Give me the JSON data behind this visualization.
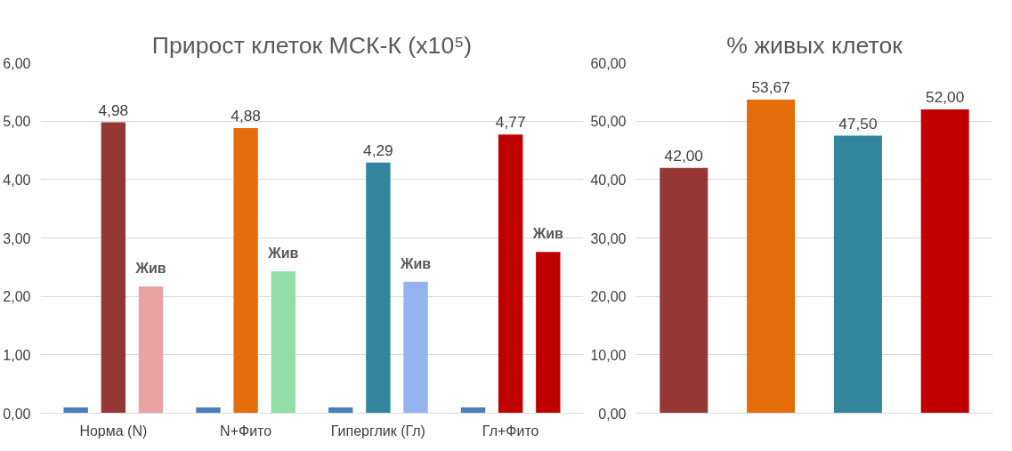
{
  "chart_data": [
    {
      "type": "bar",
      "title": "Прирост клеток МСК-К (x10⁵)",
      "categories": [
        "Норма (N)",
        "N+Фито",
        "Гиперглик (Гл)",
        "Гл+Фито"
      ],
      "grid": "y",
      "ylim": [
        0,
        6
      ],
      "yticks": [
        {
          "value": 0,
          "label": "0,00"
        },
        {
          "value": 1,
          "label": "1,00"
        },
        {
          "value": 2,
          "label": "2,00"
        },
        {
          "value": 3,
          "label": "3,00"
        },
        {
          "value": 4,
          "label": "4,00"
        },
        {
          "value": 5,
          "label": "5,00"
        },
        {
          "value": 6,
          "label": "6,00"
        }
      ],
      "series": [
        {
          "color": "#4a7ebb",
          "values": [
            0.1,
            0.1,
            0.1,
            0.1
          ]
        },
        {
          "colors": [
            "#953735",
            "#e46c0a",
            "#31859c",
            "#c00000"
          ],
          "values": [
            4.98,
            4.88,
            4.29,
            4.77
          ],
          "value_labels": [
            "4,98",
            "4,88",
            "4,29",
            "4,77"
          ]
        },
        {
          "name": "Жив",
          "colors": [
            "#e9a3a3",
            "#93dea6",
            "#95b3ee",
            "#c00000"
          ],
          "values": [
            2.17,
            2.43,
            2.25,
            2.76
          ]
        }
      ]
    },
    {
      "type": "bar",
      "title": "% живых клеток",
      "categories": [
        null,
        null,
        null,
        null
      ],
      "grid": "y",
      "ylim": [
        0,
        60
      ],
      "yticks": [
        {
          "value": 0,
          "label": "0,00"
        },
        {
          "value": 10,
          "label": "10,00"
        },
        {
          "value": 20,
          "label": "20,00"
        },
        {
          "value": 30,
          "label": "30,00"
        },
        {
          "value": 40,
          "label": "40,00"
        },
        {
          "value": 50,
          "label": "50,00"
        },
        {
          "value": 60,
          "label": "60,00"
        }
      ],
      "series": [
        {
          "colors": [
            "#953735",
            "#e46c0a",
            "#31859c",
            "#c00000"
          ],
          "values": [
            42.0,
            53.67,
            47.5,
            52.0
          ],
          "value_labels": [
            "42,00",
            "53,67",
            "47,50",
            "52,00"
          ]
        }
      ]
    }
  ]
}
